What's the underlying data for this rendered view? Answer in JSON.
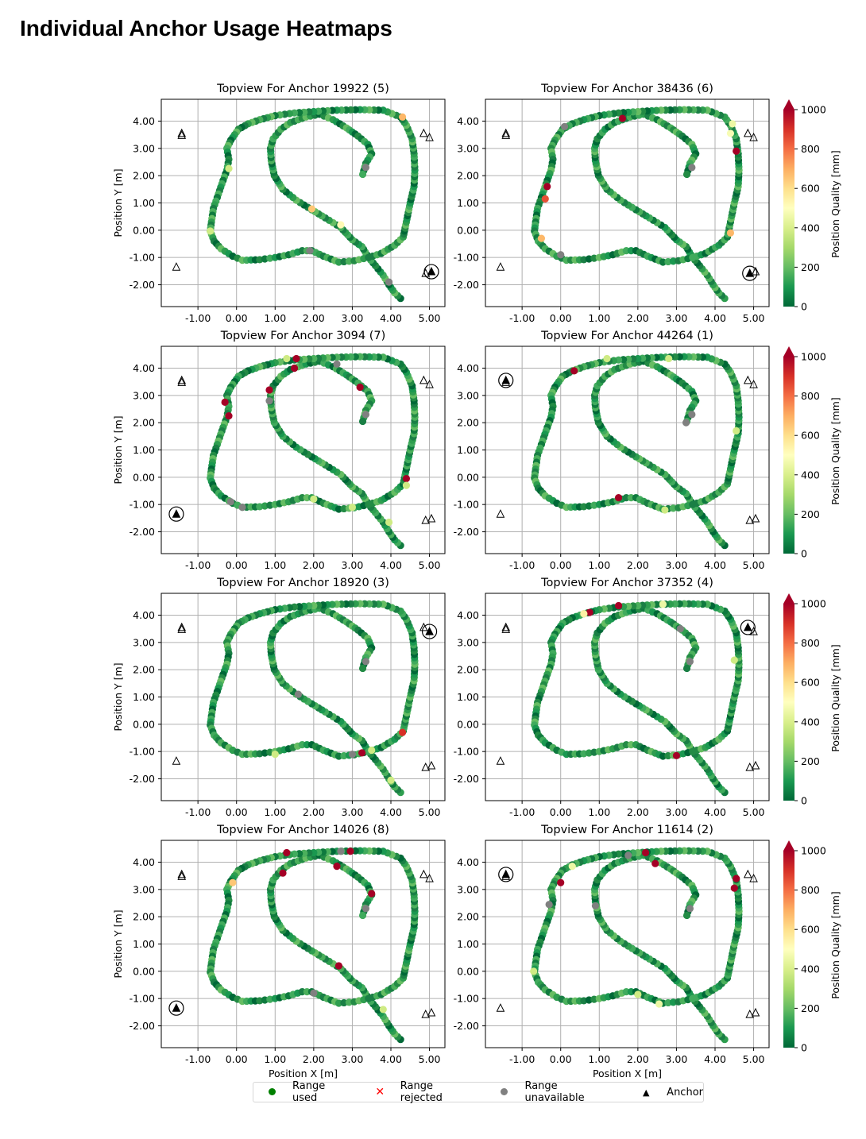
{
  "page": {
    "title": "Individual Anchor Usage Heatmaps"
  },
  "chart_data": {
    "type": "scatter",
    "subtype": "trajectory heatmap grid (4x2)",
    "xlabel": "Position X [m]",
    "ylabel": "Position Y [m]",
    "xlim": [
      -1.95,
      5.4
    ],
    "ylim": [
      -2.8,
      4.8
    ],
    "xticks": [
      -1.0,
      0.0,
      1.0,
      2.0,
      3.0,
      4.0,
      5.0
    ],
    "xtick_labels": [
      "-1.00",
      "0.00",
      "1.00",
      "2.00",
      "3.00",
      "4.00",
      "5.00"
    ],
    "yticks": [
      4.0,
      3.0,
      2.0,
      1.0,
      0.0,
      -1.0,
      -2.0
    ],
    "ytick_labels": [
      "4.00",
      "3.00",
      "2.00",
      "1.00",
      "0.00",
      "-1.00",
      "-2.00"
    ],
    "grid": true,
    "colorbar": {
      "label": "Position Quality [mm]",
      "ticks": [
        0,
        200,
        400,
        600,
        800,
        1000
      ],
      "range": [
        0,
        1000
      ],
      "colormap": "RdYlGn_r",
      "extend": "max"
    },
    "legend": [
      {
        "label": "Range used",
        "marker": "circle",
        "color": "#008000"
      },
      {
        "label": "Range rejected",
        "marker": "x",
        "color": "#ff0000"
      },
      {
        "label": "Range unavailable",
        "marker": "circle",
        "color": "#808080"
      },
      {
        "label": "Anchor",
        "marker": "triangle",
        "color": "#000000"
      }
    ],
    "anchors": [
      {
        "id": "A",
        "x": -1.42,
        "y": 3.55
      },
      {
        "id": "B",
        "x": -1.42,
        "y": 3.48
      },
      {
        "id": "C",
        "x": -1.56,
        "y": -1.35
      },
      {
        "id": "D",
        "x": 4.85,
        "y": 3.55
      },
      {
        "id": "E",
        "x": 5.0,
        "y": 3.4
      },
      {
        "id": "F",
        "x": 4.9,
        "y": -1.58
      },
      {
        "id": "G",
        "x": 5.05,
        "y": -1.52
      }
    ],
    "trajectory": [
      [
        4.25,
        -2.5
      ],
      [
        4.1,
        -2.3
      ],
      [
        3.95,
        -2.0
      ],
      [
        3.8,
        -1.65
      ],
      [
        3.6,
        -1.3
      ],
      [
        3.42,
        -1.0
      ],
      [
        3.25,
        -0.6
      ],
      [
        3.0,
        -0.35
      ],
      [
        2.7,
        0.1
      ],
      [
        2.3,
        0.45
      ],
      [
        1.95,
        0.75
      ],
      [
        1.55,
        1.1
      ],
      [
        1.2,
        1.5
      ],
      [
        0.98,
        2.0
      ],
      [
        0.9,
        2.55
      ],
      [
        0.88,
        3.0
      ],
      [
        0.95,
        3.35
      ],
      [
        1.15,
        3.7
      ],
      [
        1.4,
        3.95
      ],
      [
        1.8,
        4.15
      ],
      [
        2.15,
        4.25
      ],
      [
        2.5,
        4.05
      ],
      [
        2.85,
        3.75
      ],
      [
        3.15,
        3.45
      ],
      [
        3.4,
        3.15
      ],
      [
        3.5,
        2.8
      ],
      [
        3.35,
        2.45
      ],
      [
        3.27,
        2.05
      ]
    ],
    "trajectory_outer": [
      [
        3.42,
        -1.0
      ],
      [
        3.75,
        -0.85
      ],
      [
        4.1,
        -0.55
      ],
      [
        4.32,
        -0.25
      ],
      [
        4.4,
        0.3
      ],
      [
        4.5,
        1.0
      ],
      [
        4.6,
        1.6
      ],
      [
        4.62,
        2.2
      ],
      [
        4.6,
        2.8
      ],
      [
        4.55,
        3.35
      ],
      [
        4.4,
        3.85
      ],
      [
        4.25,
        4.15
      ],
      [
        3.8,
        4.4
      ],
      [
        3.2,
        4.42
      ],
      [
        2.6,
        4.4
      ],
      [
        2.0,
        4.35
      ],
      [
        1.5,
        4.3
      ],
      [
        1.0,
        4.2
      ],
      [
        0.6,
        4.05
      ],
      [
        0.3,
        3.9
      ],
      [
        0.05,
        3.7
      ],
      [
        -0.15,
        3.3
      ],
      [
        -0.25,
        3.0
      ],
      [
        -0.2,
        2.6
      ],
      [
        -0.25,
        2.2
      ],
      [
        -0.38,
        1.7
      ],
      [
        -0.5,
        1.2
      ],
      [
        -0.6,
        0.8
      ],
      [
        -0.65,
        0.3
      ],
      [
        -0.68,
        -0.03
      ],
      [
        -0.58,
        -0.4
      ],
      [
        -0.4,
        -0.68
      ],
      [
        -0.1,
        -0.95
      ],
      [
        0.15,
        -1.1
      ],
      [
        0.6,
        -1.08
      ],
      [
        1.0,
        -1.0
      ],
      [
        1.35,
        -0.9
      ],
      [
        1.7,
        -0.75
      ],
      [
        1.95,
        -0.75
      ],
      [
        2.25,
        -0.95
      ],
      [
        2.65,
        -1.17
      ],
      [
        3.05,
        -1.12
      ],
      [
        3.42,
        -1.0
      ]
    ],
    "subplots": [
      {
        "title": "Topview For Anchor 19922 (5)",
        "anchor_id": 19922,
        "index": 5,
        "highlight_anchor": "G",
        "outliers": [
          [
            4.3,
            4.15,
            680
          ],
          [
            1.95,
            0.78,
            650
          ],
          [
            2.7,
            0.2,
            520
          ],
          [
            -0.68,
            -0.03,
            380
          ],
          [
            -0.2,
            2.26,
            380
          ]
        ],
        "unavailable": [
          [
            3.35,
            2.3
          ],
          [
            1.9,
            -0.75
          ],
          [
            3.95,
            -1.9
          ]
        ]
      },
      {
        "title": "Topview For Anchor 38436 (6)",
        "anchor_id": 38436,
        "index": 6,
        "highlight_anchor": "F",
        "outliers": [
          [
            1.6,
            4.1,
            1000
          ],
          [
            -0.35,
            1.6,
            1000
          ],
          [
            -0.4,
            1.15,
            850
          ],
          [
            4.55,
            2.9,
            1000
          ],
          [
            4.4,
            -0.1,
            680
          ],
          [
            -0.5,
            -0.3,
            680
          ],
          [
            4.4,
            3.55,
            480
          ],
          [
            4.45,
            3.9,
            450
          ]
        ],
        "unavailable": [
          [
            0.1,
            3.8
          ],
          [
            3.4,
            2.3
          ],
          [
            0.0,
            -0.9
          ]
        ]
      },
      {
        "title": "Topview For Anchor 3094 (7)",
        "anchor_id": 3094,
        "index": 7,
        "highlight_anchor": "C",
        "outliers": [
          [
            1.55,
            4.35,
            1000
          ],
          [
            1.5,
            4.0,
            1000
          ],
          [
            0.85,
            3.2,
            1000
          ],
          [
            -0.3,
            2.75,
            1000
          ],
          [
            -0.2,
            2.25,
            1000
          ],
          [
            3.2,
            3.3,
            1000
          ],
          [
            4.4,
            -0.05,
            1000
          ],
          [
            4.4,
            -0.3,
            380
          ],
          [
            1.3,
            4.35,
            380
          ],
          [
            2.0,
            -0.8,
            380
          ],
          [
            3.0,
            -1.1,
            380
          ],
          [
            3.95,
            -1.65,
            380
          ]
        ],
        "unavailable": [
          [
            2.6,
            4.15
          ],
          [
            0.85,
            2.8
          ],
          [
            3.35,
            2.3
          ],
          [
            -0.15,
            -0.9
          ],
          [
            0.15,
            -1.1
          ]
        ]
      },
      {
        "title": "Topview For Anchor 44264 (1)",
        "anchor_id": 44264,
        "index": 1,
        "highlight_anchor": "A",
        "outliers": [
          [
            0.35,
            3.9,
            1000
          ],
          [
            1.5,
            -0.75,
            1000
          ],
          [
            2.8,
            4.35,
            380
          ],
          [
            4.55,
            1.7,
            380
          ],
          [
            2.7,
            -1.2,
            380
          ],
          [
            1.2,
            4.35,
            380
          ]
        ],
        "unavailable": [
          [
            3.4,
            2.3
          ],
          [
            3.25,
            2.0
          ]
        ]
      },
      {
        "title": "Topview For Anchor 18920 (3)",
        "anchor_id": 18920,
        "index": 3,
        "highlight_anchor": "E",
        "outliers": [
          [
            3.25,
            -1.05,
            1000
          ],
          [
            4.3,
            -0.3,
            900
          ],
          [
            3.5,
            -0.95,
            380
          ],
          [
            1.0,
            -1.1,
            380
          ],
          [
            4.0,
            -2.05,
            380
          ]
        ],
        "unavailable": [
          [
            3.35,
            2.3
          ],
          [
            1.6,
            1.1
          ],
          [
            3.0,
            -1.1
          ]
        ]
      },
      {
        "title": "Topview For Anchor 37352 (4)",
        "anchor_id": 37352,
        "index": 4,
        "highlight_anchor": "D",
        "outliers": [
          [
            0.75,
            4.1,
            1000
          ],
          [
            1.5,
            4.35,
            1000
          ],
          [
            3.0,
            -1.15,
            1000
          ],
          [
            0.6,
            4.05,
            550
          ],
          [
            2.65,
            4.4,
            450
          ],
          [
            4.5,
            2.35,
            380
          ]
        ],
        "unavailable": [
          [
            3.35,
            2.3
          ],
          [
            3.1,
            3.5
          ]
        ]
      },
      {
        "title": "Topview For Anchor 14026 (8)",
        "anchor_id": 14026,
        "index": 8,
        "highlight_anchor": "C",
        "outliers": [
          [
            1.2,
            3.6,
            1000
          ],
          [
            1.3,
            4.35,
            1000
          ],
          [
            2.95,
            4.4,
            1000
          ],
          [
            2.6,
            3.85,
            1000
          ],
          [
            3.5,
            2.85,
            1000
          ],
          [
            2.65,
            0.2,
            1000
          ],
          [
            -0.1,
            3.25,
            650
          ],
          [
            3.8,
            -1.4,
            380
          ]
        ],
        "unavailable": [
          [
            2.7,
            4.4
          ],
          [
            3.35,
            2.3
          ],
          [
            2.0,
            -0.8
          ]
        ]
      },
      {
        "title": "Topview For Anchor 11614 (2)",
        "anchor_id": 11614,
        "index": 2,
        "highlight_anchor": "A",
        "outliers": [
          [
            0.0,
            3.25,
            1000
          ],
          [
            2.2,
            4.35,
            1000
          ],
          [
            2.45,
            3.95,
            1000
          ],
          [
            4.55,
            3.4,
            1000
          ],
          [
            4.5,
            3.05,
            1000
          ],
          [
            0.3,
            3.85,
            450
          ],
          [
            2.55,
            -1.2,
            450
          ],
          [
            -0.7,
            0.0,
            380
          ],
          [
            2.0,
            -0.85,
            380
          ]
        ],
        "unavailable": [
          [
            -0.3,
            2.45
          ],
          [
            0.9,
            2.4
          ],
          [
            1.75,
            4.25
          ],
          [
            3.35,
            2.3
          ]
        ]
      }
    ]
  }
}
